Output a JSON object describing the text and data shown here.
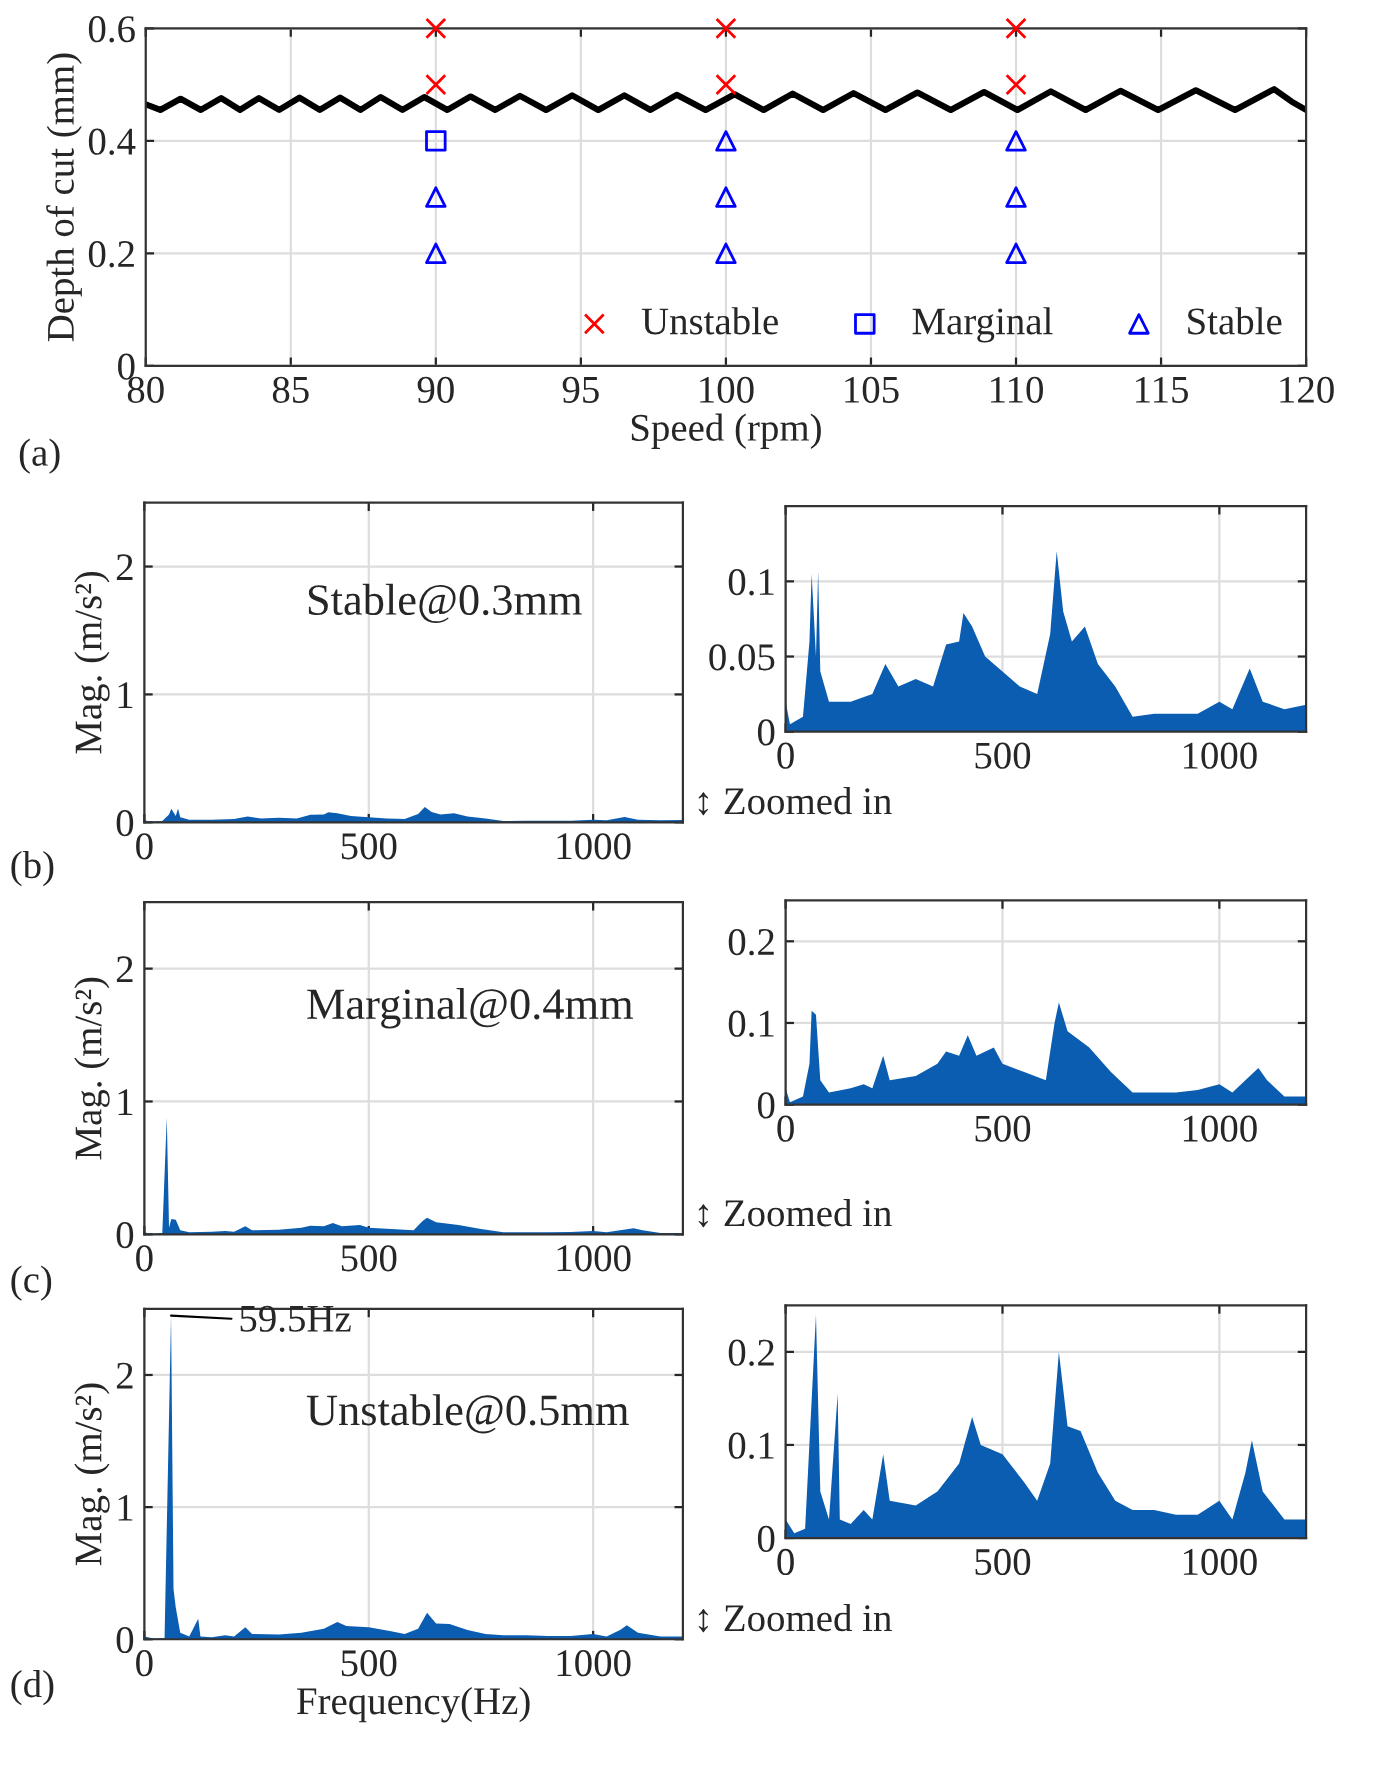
{
  "chart_data": [
    {
      "type": "scatter",
      "xlabel": "Speed (rpm)",
      "ylabel": "Depth of cut (mm)",
      "xlim": [
        80,
        120
      ],
      "ylim": [
        0,
        0.6
      ],
      "xticks": [
        80,
        85,
        90,
        95,
        100,
        105,
        110,
        115,
        120
      ],
      "yticks": [
        0,
        0.2,
        0.4,
        0.6
      ],
      "grid": true,
      "legend": "bottom right",
      "annotations": [
        "(a)"
      ],
      "series": [
        {
          "name": "Unstable",
          "color": "#ff0000",
          "marker": "cross",
          "x": [
            90,
            90,
            100,
            100,
            110,
            110
          ],
          "values": [
            0.6,
            0.5,
            0.6,
            0.5,
            0.6,
            0.5
          ]
        },
        {
          "name": "Marginal",
          "color": "#0000ff",
          "marker": "square",
          "x": [
            90
          ],
          "values": [
            0.4
          ]
        },
        {
          "name": "Stable",
          "color": "#0000ff",
          "marker": "triangle",
          "x": [
            90,
            90,
            100,
            100,
            100,
            110,
            110,
            110
          ],
          "values": [
            0.3,
            0.2,
            0.4,
            0.3,
            0.2,
            0.4,
            0.3,
            0.2
          ]
        },
        {
          "type": "line",
          "color": "#000000",
          "marker": "none",
          "line_style": "solid",
          "x": [
            80,
            80.5,
            81.2,
            81.9,
            82.6,
            83.25,
            83.9,
            84.6,
            85.3,
            86.0,
            86.7,
            87.4,
            88.1,
            88.85,
            89.6,
            90.4,
            91.2,
            92.05,
            92.9,
            93.8,
            94.7,
            95.6,
            96.5,
            97.4,
            98.3,
            99.3,
            100.3,
            101.3,
            102.3,
            103.35,
            104.4,
            105.5,
            106.6,
            107.75,
            108.9,
            110.05,
            111.2,
            112.4,
            113.6,
            114.9,
            116.2,
            117.55,
            118.9,
            119.5,
            120
          ],
          "values": [
            0.465,
            0.455,
            0.475,
            0.455,
            0.476,
            0.455,
            0.476,
            0.455,
            0.477,
            0.455,
            0.477,
            0.455,
            0.478,
            0.455,
            0.478,
            0.455,
            0.479,
            0.455,
            0.48,
            0.455,
            0.481,
            0.455,
            0.481,
            0.455,
            0.482,
            0.455,
            0.483,
            0.455,
            0.484,
            0.455,
            0.485,
            0.455,
            0.486,
            0.455,
            0.487,
            0.455,
            0.488,
            0.455,
            0.489,
            0.455,
            0.49,
            0.455,
            0.492,
            0.47,
            0.455
          ]
        }
      ]
    },
    {
      "type": "area",
      "ylabel": "Mag. (m/s²)",
      "xlim": [
        0,
        1200
      ],
      "ylim": [
        0,
        2.5
      ],
      "xticks": [
        0,
        500,
        1000
      ],
      "yticks": [
        0,
        1,
        2
      ],
      "grid": true,
      "annotations": [
        "(b)",
        "Stable@0.3mm",
        "↕ Zoomed in"
      ],
      "series": [
        {
          "color": "#0b5db1",
          "x": [
            0,
            10,
            40,
            55,
            60,
            70,
            75,
            80,
            100,
            150,
            200,
            230,
            260,
            300,
            340,
            370,
            400,
            410,
            430,
            460,
            500,
            540,
            580,
            610,
            625,
            640,
            660,
            690,
            720,
            760,
            800,
            850,
            900,
            950,
            1000,
            1030,
            1070,
            1100,
            1150,
            1200
          ],
          "values": [
            0.02,
            0.005,
            0.01,
            0.06,
            0.105,
            0.05,
            0.107,
            0.04,
            0.02,
            0.02,
            0.025,
            0.045,
            0.03,
            0.035,
            0.03,
            0.058,
            0.06,
            0.079,
            0.07,
            0.05,
            0.04,
            0.03,
            0.025,
            0.065,
            0.12,
            0.08,
            0.06,
            0.07,
            0.045,
            0.03,
            0.01,
            0.012,
            0.012,
            0.012,
            0.02,
            0.015,
            0.042,
            0.02,
            0.015,
            0.018
          ]
        }
      ]
    },
    {
      "type": "area",
      "xlim": [
        0,
        1200
      ],
      "ylim": [
        0,
        0.15
      ],
      "xticks": [
        0,
        500,
        1000
      ],
      "yticks": [
        0,
        0.05,
        0.1
      ],
      "grid": true,
      "series": [
        {
          "color": "#0b5db1",
          "x": [
            0,
            10,
            40,
            55,
            60,
            70,
            75,
            80,
            100,
            150,
            200,
            230,
            260,
            300,
            340,
            370,
            400,
            410,
            430,
            460,
            500,
            540,
            580,
            610,
            625,
            640,
            660,
            690,
            720,
            760,
            800,
            850,
            900,
            950,
            1000,
            1030,
            1070,
            1100,
            1150,
            1200
          ],
          "values": [
            0.02,
            0.005,
            0.01,
            0.06,
            0.105,
            0.05,
            0.107,
            0.04,
            0.02,
            0.02,
            0.025,
            0.045,
            0.03,
            0.035,
            0.03,
            0.058,
            0.06,
            0.079,
            0.07,
            0.05,
            0.04,
            0.03,
            0.025,
            0.065,
            0.12,
            0.08,
            0.06,
            0.07,
            0.045,
            0.03,
            0.01,
            0.012,
            0.012,
            0.012,
            0.02,
            0.015,
            0.042,
            0.02,
            0.015,
            0.018
          ]
        }
      ]
    },
    {
      "type": "area",
      "ylabel": "Mag. (m/s²)",
      "xlim": [
        0,
        1200
      ],
      "ylim": [
        0,
        2.5
      ],
      "xticks": [
        0,
        500,
        1000
      ],
      "yticks": [
        0,
        1,
        2
      ],
      "grid": true,
      "annotations": [
        "(c)",
        "Marginal@0.4mm",
        "↕ Zoomed in"
      ],
      "series": [
        {
          "color": "#0b5db1",
          "x": [
            0,
            10,
            40,
            50,
            55,
            60,
            70,
            80,
            100,
            150,
            180,
            200,
            225,
            240,
            300,
            350,
            370,
            400,
            420,
            440,
            480,
            500,
            550,
            600,
            620,
            630,
            650,
            700,
            750,
            800,
            850,
            900,
            950,
            1000,
            1030,
            1060,
            1090,
            1110,
            1150,
            1200
          ],
          "values": [
            0.02,
            0.003,
            0.01,
            0.88,
            0.05,
            0.115,
            0.11,
            0.03,
            0.015,
            0.02,
            0.025,
            0.02,
            0.06,
            0.03,
            0.035,
            0.05,
            0.065,
            0.06,
            0.085,
            0.06,
            0.07,
            0.05,
            0.04,
            0.03,
            0.1,
            0.125,
            0.09,
            0.07,
            0.04,
            0.015,
            0.015,
            0.015,
            0.018,
            0.025,
            0.015,
            0.03,
            0.045,
            0.03,
            0.01,
            0.01
          ]
        }
      ]
    },
    {
      "type": "area",
      "xlim": [
        0,
        1200
      ],
      "ylim": [
        0,
        0.25
      ],
      "xticks": [
        0,
        500,
        1000
      ],
      "yticks": [
        0,
        0.1,
        0.2
      ],
      "grid": true,
      "series": [
        {
          "color": "#0b5db1",
          "x": [
            0,
            10,
            40,
            55,
            60,
            70,
            80,
            100,
            150,
            180,
            200,
            225,
            240,
            300,
            350,
            370,
            400,
            420,
            440,
            480,
            500,
            550,
            600,
            620,
            630,
            650,
            700,
            750,
            800,
            850,
            900,
            950,
            1000,
            1030,
            1060,
            1090,
            1110,
            1150,
            1200
          ],
          "values": [
            0.02,
            0.003,
            0.01,
            0.05,
            0.115,
            0.11,
            0.03,
            0.015,
            0.02,
            0.025,
            0.02,
            0.06,
            0.03,
            0.035,
            0.05,
            0.065,
            0.06,
            0.085,
            0.06,
            0.07,
            0.05,
            0.04,
            0.03,
            0.1,
            0.125,
            0.09,
            0.07,
            0.04,
            0.015,
            0.015,
            0.015,
            0.018,
            0.025,
            0.015,
            0.03,
            0.045,
            0.03,
            0.01,
            0.01
          ]
        }
      ]
    },
    {
      "type": "area",
      "xlabel": "Frequency(Hz)",
      "ylabel": "Mag. (m/s²)",
      "xlim": [
        0,
        1200
      ],
      "ylim": [
        0,
        2.5
      ],
      "xticks": [
        0,
        500,
        1000
      ],
      "yticks": [
        0,
        1,
        2
      ],
      "grid": true,
      "annotations": [
        "(d)",
        "Unstable@0.5mm",
        "↕ Zoomed in",
        {
          "text": "59.5Hz",
          "x": 59.5,
          "y": 2.45
        }
      ],
      "series": [
        {
          "color": "#0b5db1",
          "x": [
            0,
            20,
            45,
            59.5,
            65,
            70,
            80,
            100,
            120,
            125,
            150,
            180,
            200,
            225,
            240,
            300,
            350,
            400,
            430,
            450,
            500,
            550,
            580,
            610,
            630,
            650,
            680,
            720,
            760,
            800,
            850,
            900,
            950,
            1000,
            1030,
            1060,
            1075,
            1100,
            1150,
            1200
          ],
          "values": [
            0.02,
            0.005,
            0.01,
            2.45,
            0.38,
            0.24,
            0.05,
            0.02,
            0.155,
            0.02,
            0.015,
            0.03,
            0.02,
            0.09,
            0.04,
            0.035,
            0.05,
            0.08,
            0.13,
            0.1,
            0.09,
            0.06,
            0.04,
            0.08,
            0.2,
            0.12,
            0.115,
            0.07,
            0.04,
            0.03,
            0.03,
            0.025,
            0.025,
            0.04,
            0.02,
            0.07,
            0.105,
            0.05,
            0.02,
            0.02
          ]
        }
      ]
    },
    {
      "type": "area",
      "xlim": [
        0,
        1200
      ],
      "ylim": [
        0,
        0.25
      ],
      "xticks": [
        0,
        500,
        1000
      ],
      "yticks": [
        0,
        0.1,
        0.2
      ],
      "grid": true,
      "series": [
        {
          "color": "#0b5db1",
          "x": [
            0,
            20,
            45,
            70,
            80,
            100,
            120,
            125,
            150,
            180,
            200,
            225,
            240,
            300,
            350,
            400,
            430,
            450,
            500,
            550,
            580,
            610,
            630,
            650,
            680,
            720,
            760,
            800,
            850,
            900,
            950,
            1000,
            1030,
            1060,
            1075,
            1100,
            1150,
            1200
          ],
          "values": [
            0.02,
            0.005,
            0.01,
            0.24,
            0.05,
            0.02,
            0.155,
            0.02,
            0.015,
            0.03,
            0.02,
            0.09,
            0.04,
            0.035,
            0.05,
            0.08,
            0.13,
            0.1,
            0.09,
            0.06,
            0.04,
            0.08,
            0.2,
            0.12,
            0.115,
            0.07,
            0.04,
            0.03,
            0.03,
            0.025,
            0.025,
            0.04,
            0.02,
            0.07,
            0.105,
            0.05,
            0.02,
            0.02
          ]
        }
      ]
    }
  ]
}
